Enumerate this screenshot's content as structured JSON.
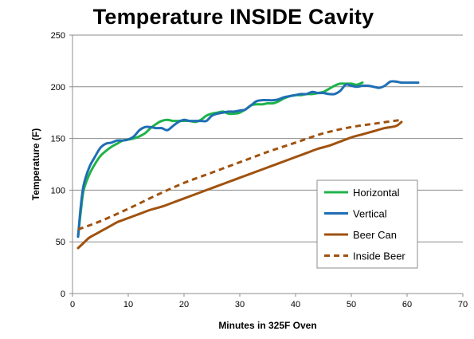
{
  "chart_data": {
    "type": "line",
    "title": "Temperature INSIDE Cavity",
    "xlabel": "Minutes in 325F Oven",
    "ylabel": "Temperature (F)",
    "xlim": [
      0,
      70
    ],
    "ylim": [
      0,
      250
    ],
    "xticks": [
      0,
      10,
      20,
      30,
      40,
      50,
      60,
      70
    ],
    "yticks": [
      0,
      50,
      100,
      150,
      200,
      250
    ],
    "grid": "horizontal",
    "legend_position": "right",
    "series": [
      {
        "name": "Horizontal",
        "color": "#1fb34a",
        "dash": "solid",
        "x": [
          1,
          1.5,
          2,
          3,
          4,
          5,
          6,
          7,
          8,
          9,
          10,
          11,
          12,
          13,
          14,
          15,
          16,
          17,
          18,
          19,
          20,
          21,
          22,
          23,
          24,
          25,
          26,
          27,
          28,
          29,
          30,
          31,
          32,
          33,
          34,
          35,
          36,
          37,
          38,
          39,
          40,
          41,
          42,
          43,
          44,
          45,
          46,
          47,
          48,
          49,
          50,
          51,
          52
        ],
        "y": [
          55,
          80,
          100,
          115,
          125,
          133,
          138,
          142,
          145,
          148,
          149,
          150,
          152,
          155,
          160,
          164,
          167,
          168,
          167,
          167,
          167,
          167,
          166,
          168,
          172,
          174,
          175,
          176,
          174,
          174,
          175,
          178,
          182,
          183,
          183,
          184,
          184,
          186,
          189,
          191,
          192,
          192,
          193,
          193,
          194,
          195,
          198,
          201,
          203,
          203,
          203,
          202,
          204
        ]
      },
      {
        "name": "Vertical",
        "color": "#1f6eb4",
        "dash": "solid",
        "x": [
          1,
          1.5,
          2,
          3,
          4,
          5,
          6,
          7,
          8,
          9,
          10,
          11,
          12,
          13,
          14,
          15,
          16,
          17,
          18,
          19,
          20,
          21,
          22,
          23,
          24,
          25,
          26,
          27,
          28,
          29,
          30,
          31,
          32,
          33,
          34,
          35,
          36,
          37,
          38,
          39,
          40,
          41,
          42,
          43,
          44,
          45,
          46,
          47,
          48,
          49,
          50,
          51,
          52,
          53,
          54,
          55,
          56,
          57,
          58,
          59,
          60,
          61,
          62
        ],
        "y": [
          55,
          85,
          105,
          122,
          132,
          141,
          145,
          146,
          148,
          148,
          149,
          152,
          158,
          161,
          161,
          160,
          160,
          158,
          162,
          166,
          168,
          167,
          167,
          167,
          167,
          172,
          174,
          175,
          176,
          176,
          177,
          178,
          182,
          186,
          187,
          187,
          187,
          188,
          190,
          191,
          192,
          193,
          193,
          195,
          194,
          194,
          193,
          193,
          196,
          202,
          201,
          200,
          201,
          201,
          200,
          199,
          201,
          205,
          205,
          204,
          204,
          204,
          204
        ]
      },
      {
        "name": "Beer Can",
        "color": "#a0520f",
        "dash": "solid",
        "x": [
          1,
          2,
          3,
          4,
          5,
          6,
          7,
          8,
          9,
          10,
          12,
          14,
          16,
          18,
          20,
          22,
          24,
          26,
          28,
          30,
          32,
          34,
          36,
          38,
          40,
          42,
          44,
          46,
          48,
          50,
          52,
          54,
          56,
          58,
          59
        ],
        "y": [
          44,
          49,
          54,
          57,
          60,
          63,
          66,
          69,
          71,
          73,
          77,
          81,
          84,
          88,
          92,
          96,
          100,
          104,
          108,
          112,
          116,
          120,
          124,
          128,
          132,
          136,
          140,
          143,
          147,
          151,
          154,
          157,
          160,
          162,
          166
        ]
      },
      {
        "name": "Inside Beer",
        "color": "#a0520f",
        "dash": "dashed",
        "x": [
          1,
          5,
          10,
          15,
          20,
          25,
          30,
          35,
          40,
          45,
          50,
          55,
          59
        ],
        "y": [
          62,
          70,
          82,
          95,
          107,
          117,
          127,
          137,
          146,
          155,
          161,
          165,
          168
        ]
      }
    ]
  }
}
